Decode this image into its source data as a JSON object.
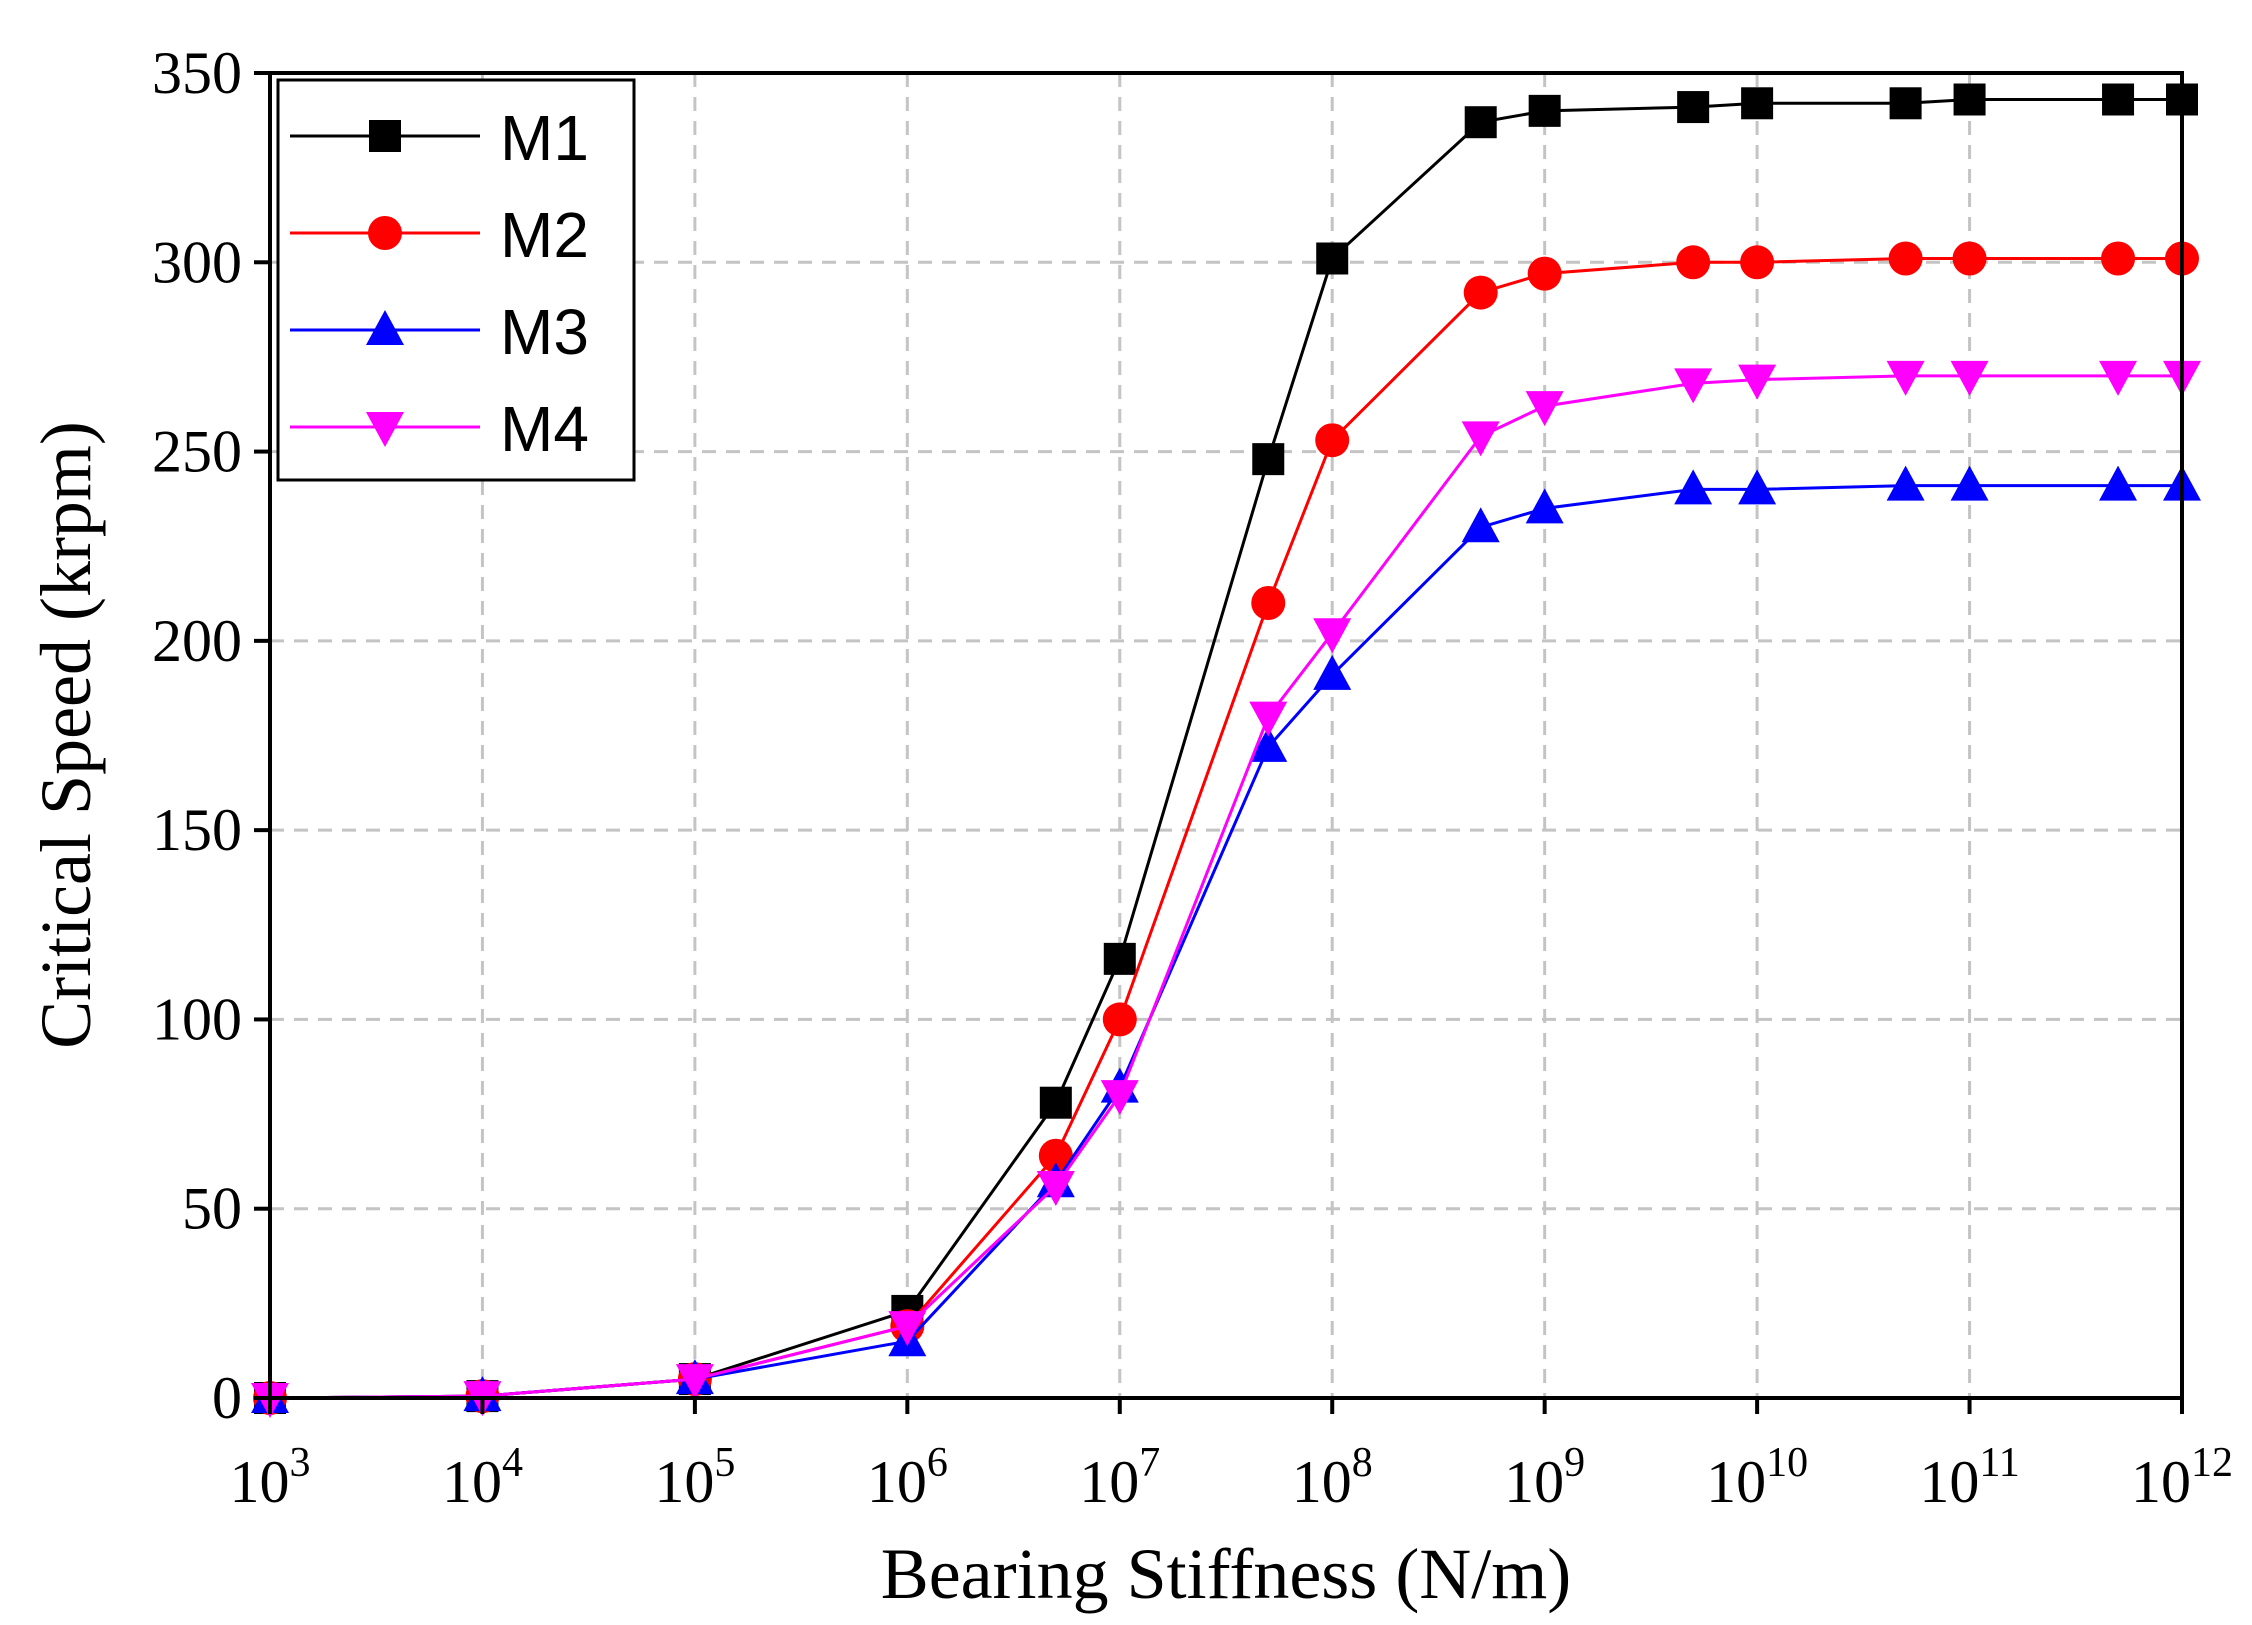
{
  "chart_data": {
    "type": "line",
    "title": "",
    "xlabel": "Bearing Stiffness (N/m)",
    "ylabel": "Critical Speed (krpm)",
    "xscale": "log",
    "xlim": [
      1000,
      1000000000000
    ],
    "ylim": [
      0,
      350
    ],
    "grid": true,
    "legend_position": "top-left",
    "x_tick_base": "10",
    "x_tick_exponents": [
      "3",
      "4",
      "5",
      "6",
      "7",
      "8",
      "9",
      "10",
      "11",
      "12"
    ],
    "y_ticks": [
      0,
      50,
      100,
      150,
      200,
      250,
      300,
      350
    ],
    "y_tick_labels": [
      "0",
      "50",
      "100",
      "150",
      "200",
      "250",
      "300",
      "350"
    ],
    "x": [
      1000,
      10000,
      100000,
      1000000,
      5000000,
      10000000,
      50000000,
      100000000,
      500000000,
      1000000000,
      5000000000,
      10000000000,
      50000000000,
      100000000000,
      500000000000,
      1000000000000
    ],
    "series": [
      {
        "name": "M1",
        "color": "#000000",
        "marker": "square",
        "values": [
          0,
          0.5,
          5,
          23,
          78,
          116,
          248,
          301,
          337,
          340,
          341,
          342,
          342,
          343,
          343,
          343
        ]
      },
      {
        "name": "M2",
        "color": "#ff0000",
        "marker": "circle",
        "values": [
          0,
          0.5,
          5,
          19,
          64,
          100,
          210,
          253,
          292,
          297,
          300,
          300,
          301,
          301,
          301,
          301
        ]
      },
      {
        "name": "M3",
        "color": "#0000ff",
        "marker": "triangle-up",
        "values": [
          0,
          0.5,
          5,
          15,
          57,
          82,
          172,
          191,
          230,
          235,
          240,
          240,
          241,
          241,
          241,
          241
        ]
      },
      {
        "name": "M4",
        "color": "#ff00ff",
        "marker": "triangle-down",
        "values": [
          0,
          0.5,
          5,
          19,
          56,
          80,
          180,
          202,
          254,
          262,
          268,
          269,
          270,
          270,
          270,
          270
        ]
      }
    ]
  }
}
